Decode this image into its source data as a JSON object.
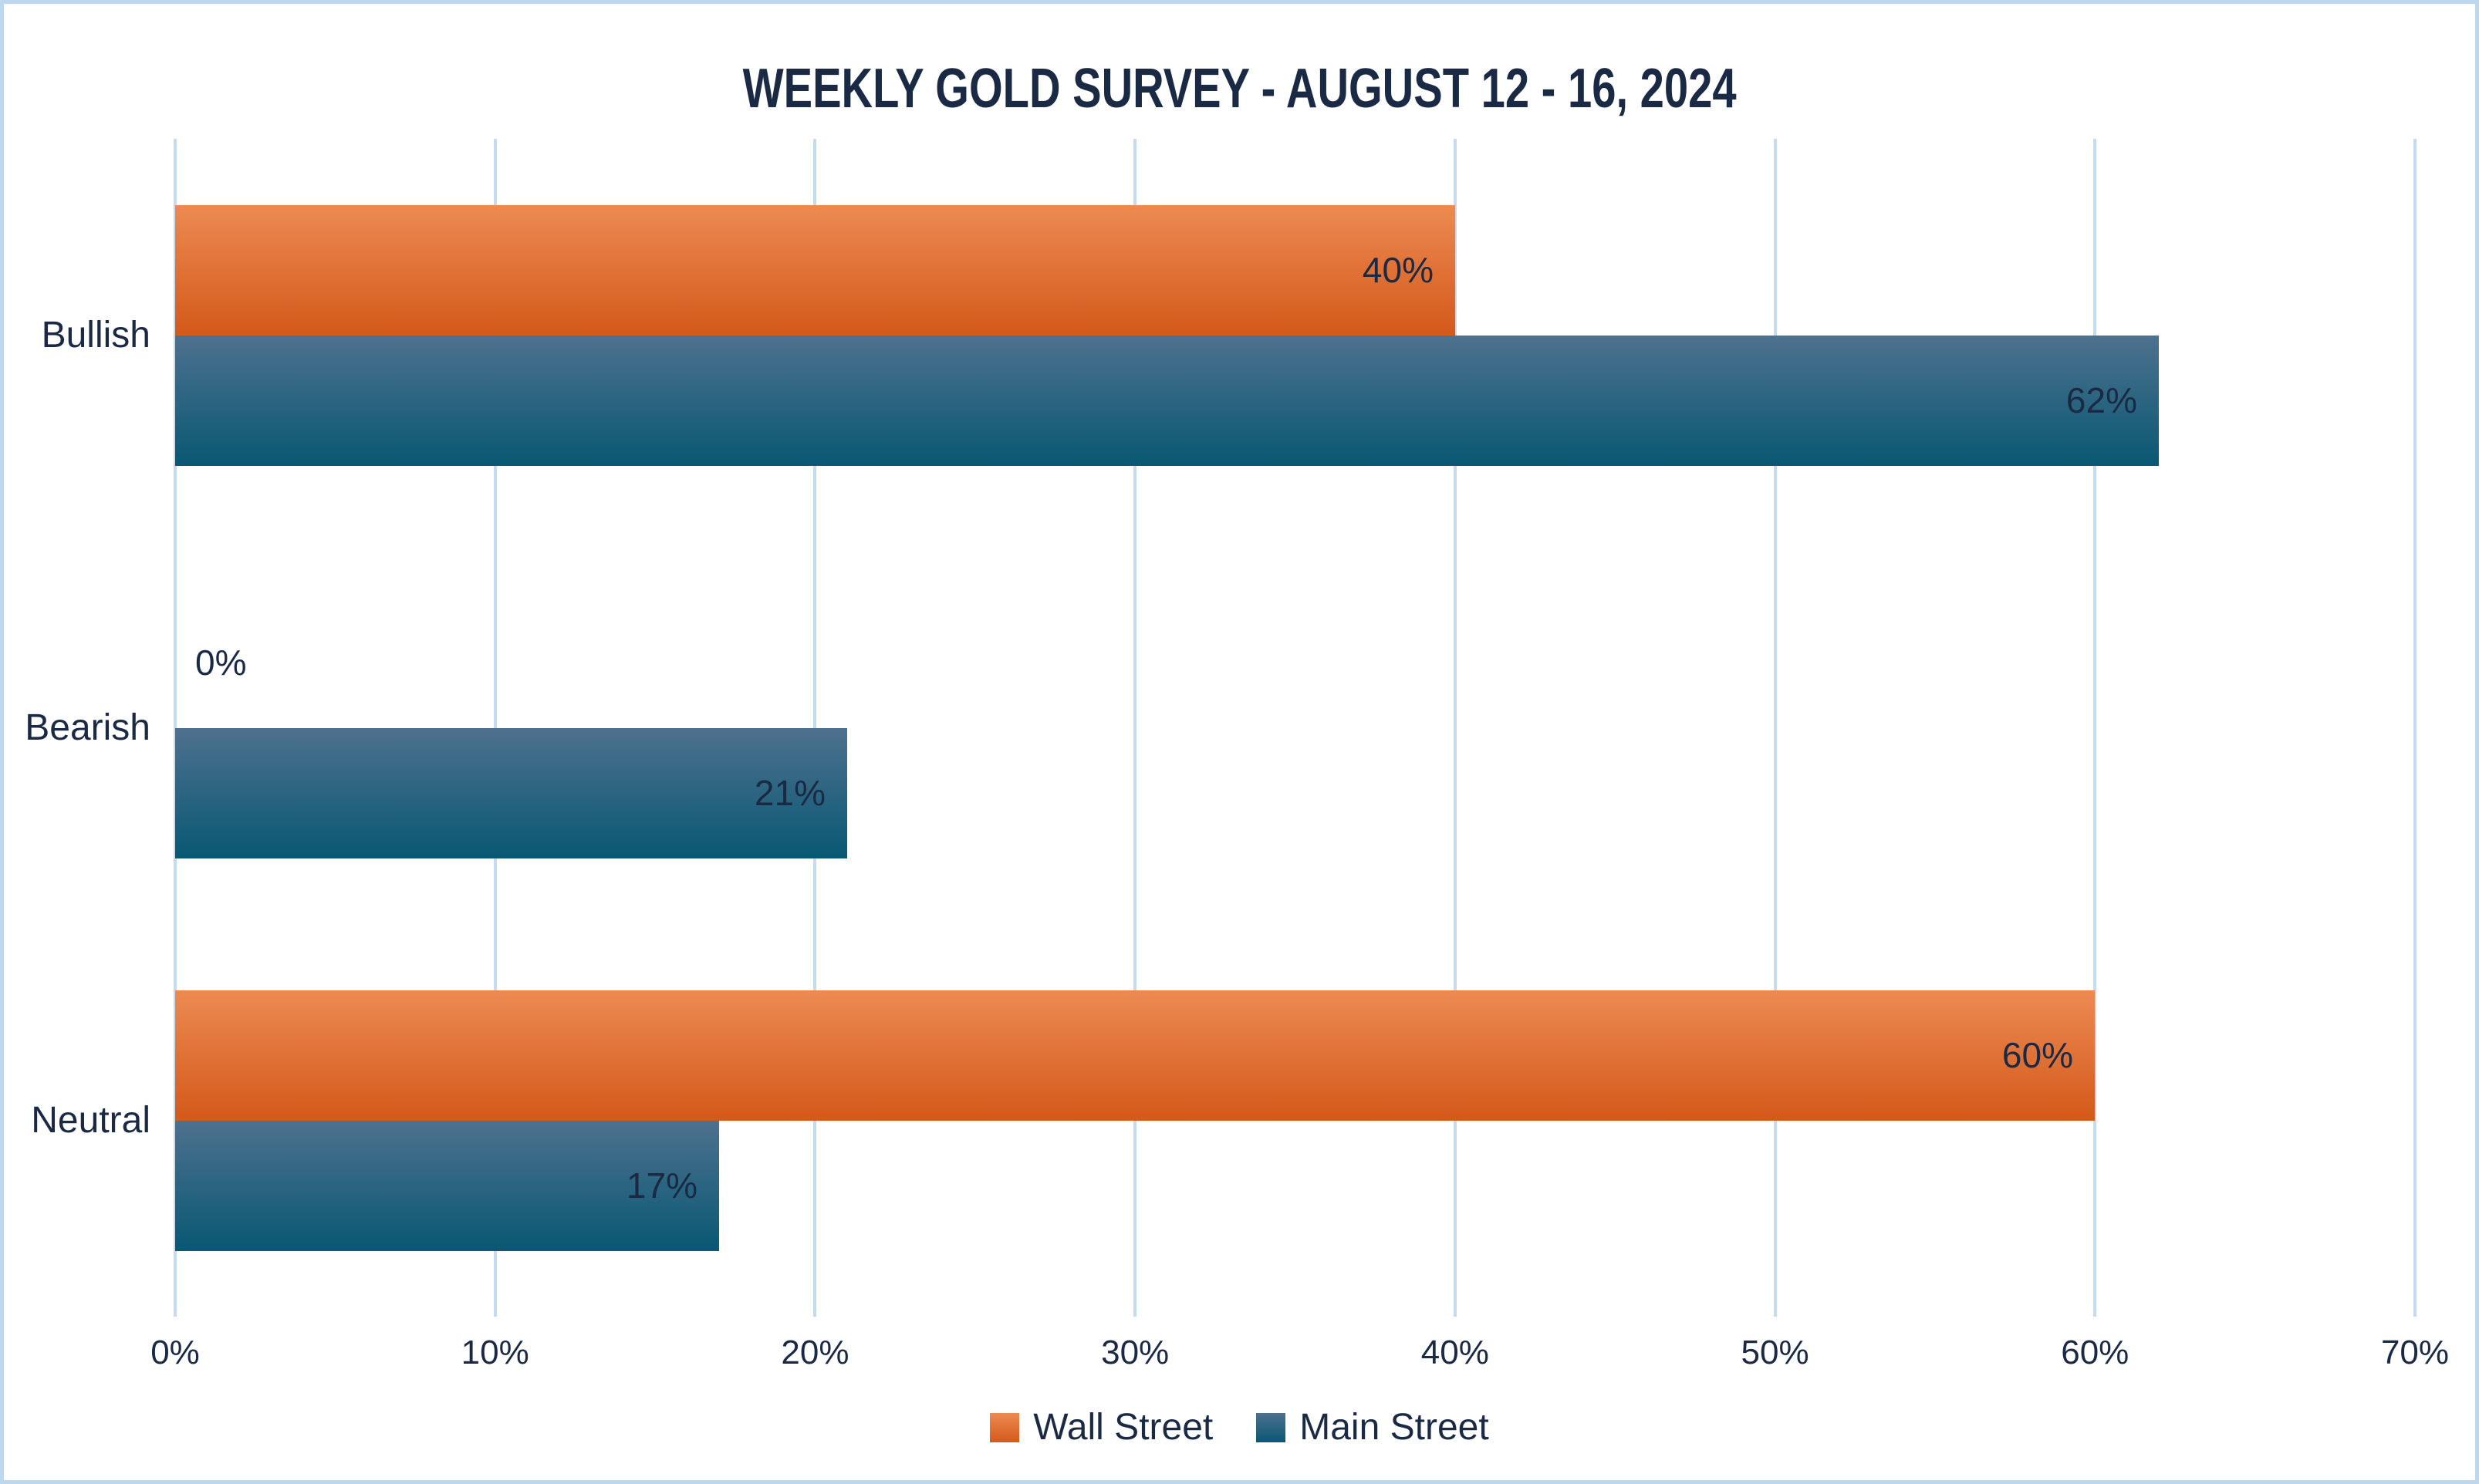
{
  "chart_data": {
    "type": "bar",
    "orientation": "horizontal",
    "title": "WEEKLY GOLD SURVEY - AUGUST 12 - 16, 2024",
    "categories": [
      "Bullish",
      "Bearish",
      "Neutral"
    ],
    "series": [
      {
        "name": "Wall Street",
        "values": [
          40,
          0,
          60
        ],
        "labels": [
          "40%",
          "0%",
          "60%"
        ],
        "color_top": "#EC8A52",
        "color_bottom": "#D4591A"
      },
      {
        "name": "Main Street",
        "values": [
          62,
          21,
          17
        ],
        "labels": [
          "62%",
          "21%",
          "17%"
        ],
        "color_top": "#4E718E",
        "color_bottom": "#085873"
      }
    ],
    "xlim": [
      0,
      70
    ],
    "x_tick_labels": [
      "0%",
      "10%",
      "20%",
      "30%",
      "40%",
      "50%",
      "60%",
      "70%"
    ],
    "grid": true,
    "legend_position": "bottom"
  },
  "colors": {
    "background": "#FFFFFF",
    "frame_border": "#BDD7EE",
    "gridline": "#C5DCF0",
    "text": "#1B2A44"
  }
}
